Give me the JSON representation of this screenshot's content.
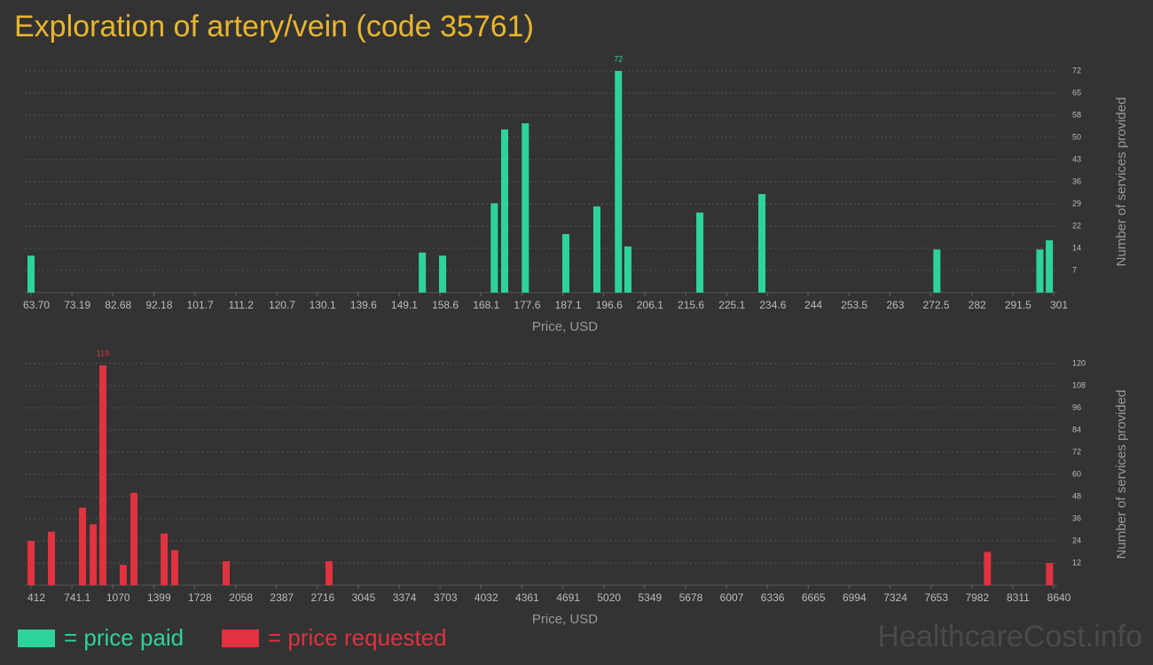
{
  "title": "Exploration of artery/vein (code 35761)",
  "watermark": "HealthcareCost.info",
  "chart_data": [
    {
      "type": "bar",
      "x_label": "Price, USD",
      "y_label": "Number of services provided",
      "x": [
        63.7,
        154.5,
        159.2,
        171.2,
        173.6,
        178.4,
        187.8,
        195.0,
        200.0,
        202.2,
        218.9,
        233.3,
        273.9,
        297.8,
        300.0
      ],
      "series": [
        {
          "name": "= price paid",
          "color": "#2ed39a",
          "values": [
            12,
            13,
            12,
            29,
            53,
            55,
            19,
            28,
            72,
            15,
            26,
            32,
            14,
            14,
            17
          ]
        }
      ],
      "xlim": [
        63.7,
        301
      ],
      "xticks": [
        {
          "value": 63.7,
          "label": "63.70"
        },
        73.19,
        82.68,
        92.18,
        101.7,
        111.2,
        120.7,
        130.1,
        139.6,
        149.1,
        158.6,
        168.1,
        177.6,
        187.1,
        196.6,
        206.1,
        215.6,
        225.1,
        234.6,
        244,
        253.5,
        263,
        272.5,
        282,
        291.5,
        301
      ],
      "ylim": [
        0,
        72
      ],
      "yticks": [
        {
          "value": 7.2,
          "label": "7"
        },
        {
          "value": 14.4,
          "label": "14"
        },
        {
          "value": 21.6,
          "label": "22"
        },
        {
          "value": 28.8,
          "label": "29"
        },
        36,
        {
          "value": 43.2,
          "label": "43"
        },
        {
          "value": 50.4,
          "label": "50"
        },
        {
          "value": 57.6,
          "label": "58"
        },
        {
          "value": 64.8,
          "label": "65"
        },
        72
      ],
      "grid": true
    },
    {
      "type": "bar",
      "x_label": "Price, USD",
      "y_label": "Number of services provided",
      "x": [
        412,
        576,
        826,
        912,
        990,
        1154,
        1240,
        1483,
        1568,
        1982,
        2810,
        8107,
        8607
      ],
      "series": [
        {
          "name": "= price requested",
          "color": "#e0323f",
          "values": [
            24,
            29,
            42,
            33,
            119,
            11,
            50,
            28,
            19,
            13,
            13,
            18,
            12
          ]
        }
      ],
      "xlim": [
        412,
        8640
      ],
      "xticks": [
        412,
        741.1,
        1070,
        1399,
        1728,
        2058,
        2387,
        2716,
        3045,
        3374,
        3703,
        4032,
        4361,
        4691,
        5020,
        5349,
        5678,
        6007,
        6336,
        6665,
        6994,
        7324,
        7653,
        7982,
        8311,
        8640
      ],
      "ylim": [
        0,
        120
      ],
      "yticks": [
        12,
        24,
        36,
        48,
        60,
        72,
        84,
        96,
        108,
        120
      ],
      "grid": true
    }
  ]
}
